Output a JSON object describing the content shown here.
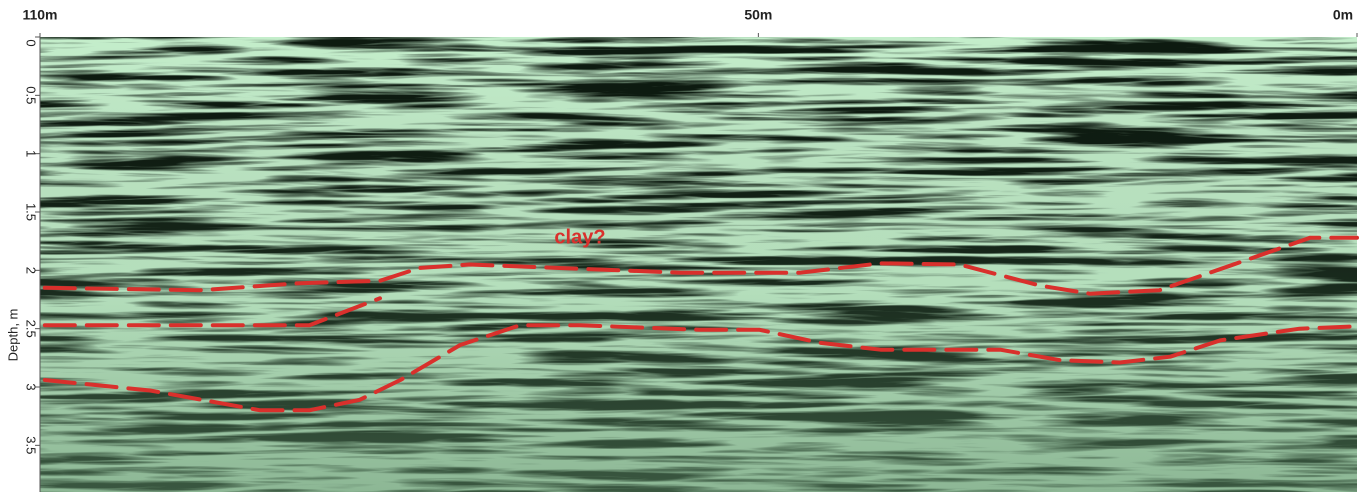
{
  "chart_data": {
    "type": "line",
    "y_label": "Depth, m",
    "annotation": "clay?",
    "xlim": [
      110,
      0
    ],
    "xticks": [
      {
        "value": 110,
        "label": "110m"
      },
      {
        "value": 50,
        "label": "50m"
      },
      {
        "value": 0,
        "label": "0m"
      }
    ],
    "ylim": [
      0,
      3.9
    ],
    "yticks": [
      0,
      0.5,
      1,
      1.5,
      2,
      2.5,
      3,
      3.5
    ],
    "y_inverted": true,
    "series": [
      {
        "color": "#d9302c",
        "x": [
          109.6,
          96.6,
          88.3,
          81.6,
          78.3,
          74.1,
          66.6,
          61.6,
          56.5,
          46.5,
          39.8,
          33.2,
          26.5,
          22.3,
          16.5,
          10.6,
          3.9,
          0
        ],
        "values": [
          2.15,
          2.17,
          2.11,
          2.09,
          1.98,
          1.95,
          1.98,
          2.0,
          2.02,
          2.02,
          1.94,
          1.95,
          2.13,
          2.2,
          2.17,
          1.96,
          1.72,
          1.72
        ]
      },
      {
        "color": "#d9302c",
        "x": [
          109.6,
          87.5,
          81.6
        ],
        "values": [
          2.47,
          2.47,
          2.24
        ]
      },
      {
        "color": "#d9302c",
        "x": [
          109.6,
          100.8,
          91.6,
          87.5,
          83.3,
          79.9,
          74.9,
          69.9,
          64.9,
          54.9,
          49.9,
          44.9,
          39.8,
          29.8,
          24.8,
          19.8,
          15.6,
          11.4,
          4.8,
          0
        ],
        "values": [
          2.94,
          3.03,
          3.2,
          3.2,
          3.11,
          2.94,
          2.64,
          2.47,
          2.47,
          2.51,
          2.51,
          2.62,
          2.68,
          2.68,
          2.77,
          2.79,
          2.74,
          2.6,
          2.5,
          2.48
        ]
      }
    ]
  }
}
